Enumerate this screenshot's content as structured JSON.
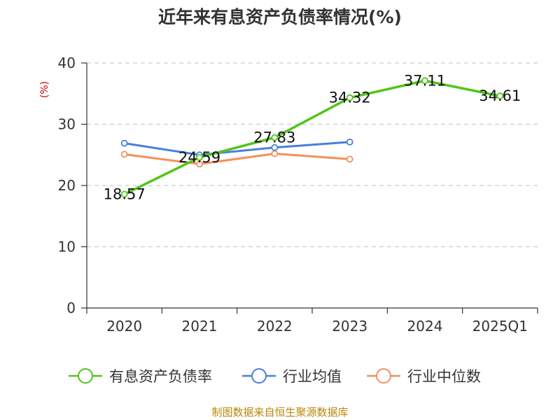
{
  "chart_data": {
    "type": "line",
    "title": "近年来有息资产负债率情况(%)",
    "ylabel": "(%)",
    "xlabel": "",
    "categories": [
      "2020",
      "2021",
      "2022",
      "2023",
      "2024",
      "2025Q1"
    ],
    "ylim": [
      0,
      40
    ],
    "yticks": [
      0,
      10,
      20,
      30,
      40
    ],
    "grid": true,
    "legend_position": "bottom",
    "series": [
      {
        "name": "有息资产负债率",
        "color": "#52c41a",
        "values": [
          18.57,
          24.59,
          27.83,
          34.32,
          37.11,
          34.61
        ],
        "labels": [
          "18.57",
          "24.59",
          "27.83",
          "34.32",
          "37.11",
          "34.61"
        ]
      },
      {
        "name": "行业均值",
        "color": "#4a7fd9",
        "values": [
          26.9,
          25.0,
          26.2,
          27.1,
          null,
          null
        ]
      },
      {
        "name": "行业中位数",
        "color": "#f5905a",
        "values": [
          25.1,
          23.5,
          25.2,
          24.3,
          null,
          null
        ]
      }
    ]
  },
  "source": "制图数据来自恒生聚源数据库"
}
